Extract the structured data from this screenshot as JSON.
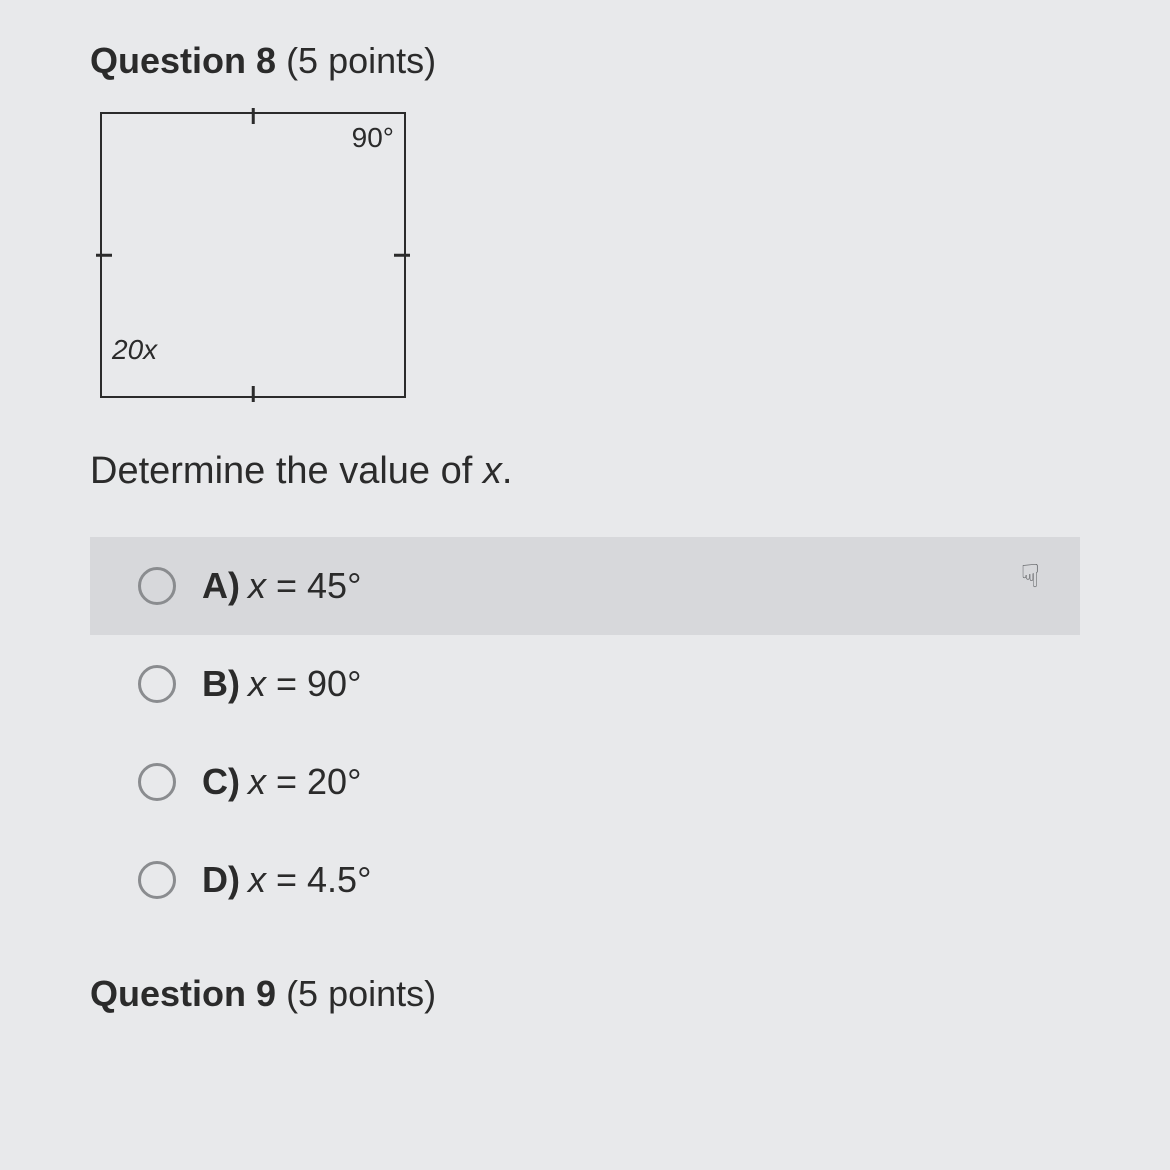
{
  "question": {
    "number": 8,
    "points_text": "(5 points)",
    "prompt_pre": "Determine the value of ",
    "prompt_var": "x",
    "prompt_post": "."
  },
  "diagram": {
    "angle_tr": "90°",
    "angle_bl": "20x",
    "square_border_color": "#2b2b2b"
  },
  "options": [
    {
      "letter": "A)",
      "var": "x",
      "eq": " = 45°",
      "hover": true
    },
    {
      "letter": "B)",
      "var": "x",
      "eq": " = 90°",
      "hover": false
    },
    {
      "letter": "C)",
      "var": "x",
      "eq": " = 20°",
      "hover": false
    },
    {
      "letter": "D)",
      "var": "x",
      "eq": " = 4.5°",
      "hover": false
    }
  ],
  "next_question": {
    "number": 9,
    "points_text": "(5 points)"
  },
  "cursor_glyph": "☟",
  "colors": {
    "bg": "#e8e9eb",
    "hover_bg": "#d7d8db",
    "text": "#2b2b2b",
    "radio_border": "#8a8c8f"
  }
}
